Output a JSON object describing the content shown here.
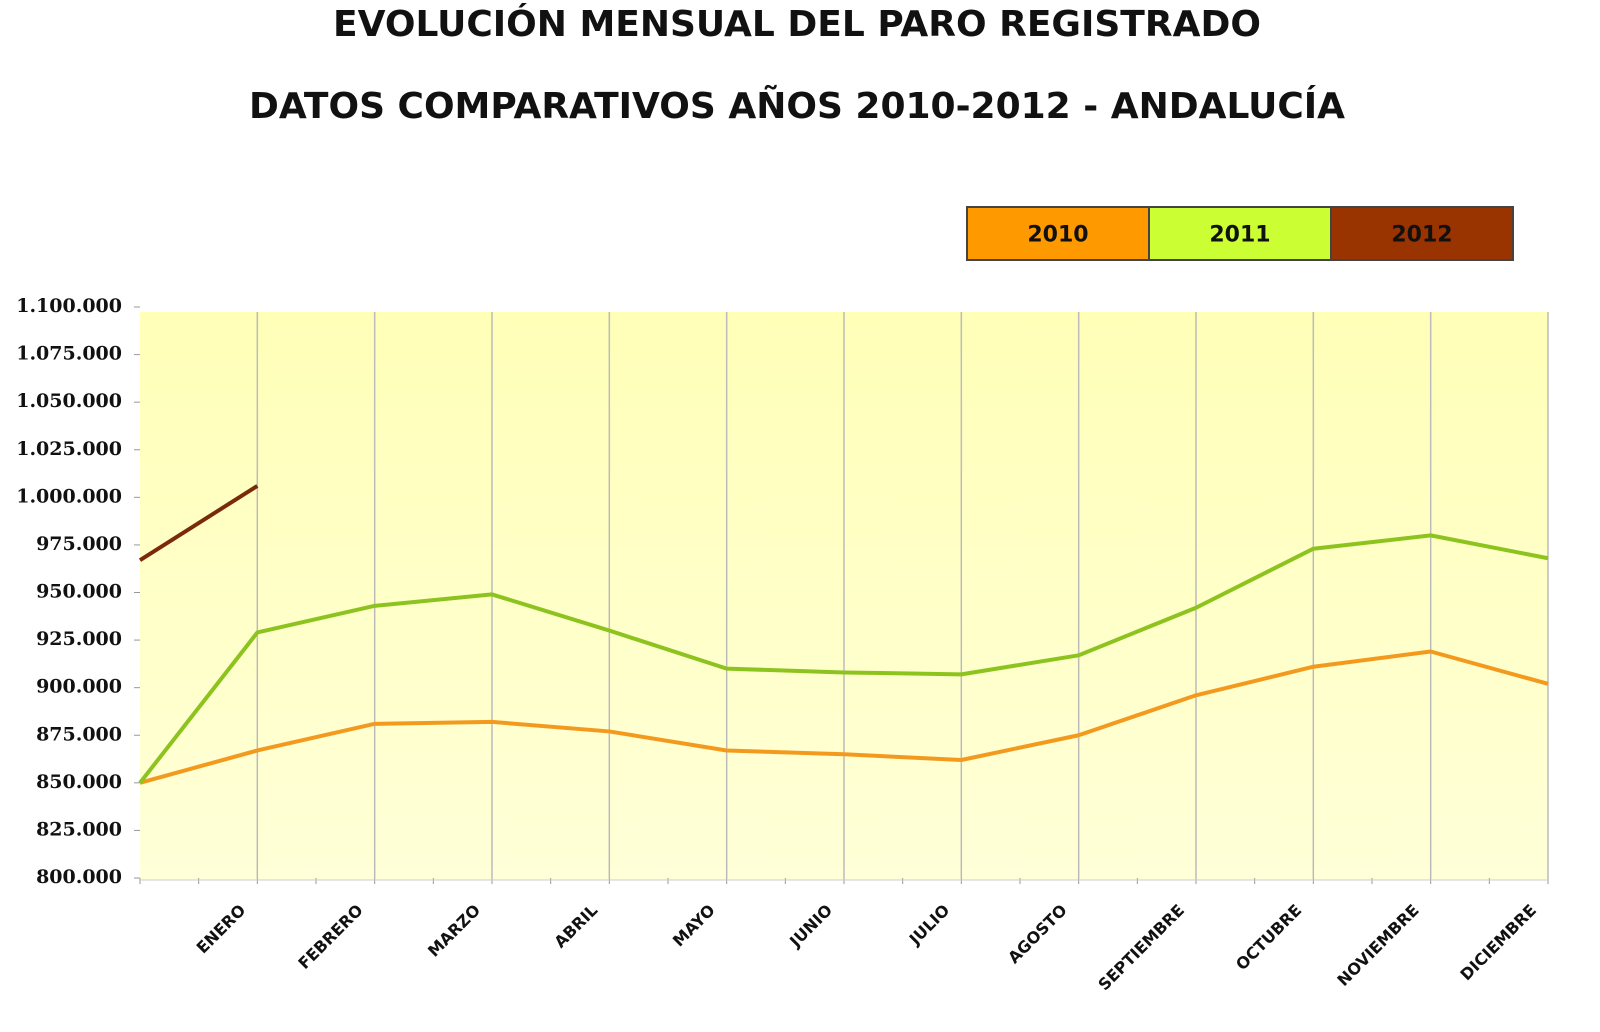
{
  "chart_data": {
    "type": "line",
    "title": "EVOLUCIÓN MENSUAL DEL PARO REGISTRADO",
    "subtitle": "DATOS COMPARATIVOS AÑOS 2010-2012 - ANDALUCÍA",
    "categories": [
      null,
      "ENERO",
      "FEBRERO",
      "MARZO",
      "ABRIL",
      "MAYO",
      "JUNIO",
      "JULIO",
      "AGOSTO",
      "SEPTIEMBRE",
      "OCTUBRE",
      "NOVIEMBRE",
      "DICIEMBRE"
    ],
    "series": [
      {
        "name": "2010",
        "color": "#f39a1e",
        "legend_color": "#ff9900",
        "values": [
          850000,
          867000,
          881000,
          882000,
          877000,
          867000,
          865000,
          862000,
          875000,
          896000,
          911000,
          919000,
          902000
        ]
      },
      {
        "name": "2011",
        "color": "#8dc31e",
        "legend_color": "#ccff33",
        "values": [
          850000,
          929000,
          943000,
          949000,
          930000,
          910000,
          908000,
          907000,
          917000,
          942000,
          973000,
          980000,
          968000
        ]
      },
      {
        "name": "2012",
        "color": "#7a2a0a",
        "legend_color": "#993300",
        "values": [
          967000,
          1006000,
          null,
          null,
          null,
          null,
          null,
          null,
          null,
          null,
          null,
          null,
          null
        ]
      }
    ],
    "ylim": [
      800000,
      1100000
    ],
    "yticks": [
      {
        "value": 800000,
        "label": "800.000"
      },
      {
        "value": 825000,
        "label": "825.000"
      },
      {
        "value": 850000,
        "label": "850.000"
      },
      {
        "value": 875000,
        "label": "875.000"
      },
      {
        "value": 900000,
        "label": "900.000"
      },
      {
        "value": 925000,
        "label": "925.000"
      },
      {
        "value": 950000,
        "label": "950.000"
      },
      {
        "value": 975000,
        "label": "975.000"
      },
      {
        "value": 1000000,
        "label": "1.000.000"
      },
      {
        "value": 1025000,
        "label": "1.025.000"
      },
      {
        "value": 1050000,
        "label": "1.050.000"
      },
      {
        "value": 1075000,
        "label": "1.075.000"
      },
      {
        "value": 1100000,
        "label": "1.100.000"
      }
    ],
    "grid": "vertical",
    "legend": "top-right"
  }
}
